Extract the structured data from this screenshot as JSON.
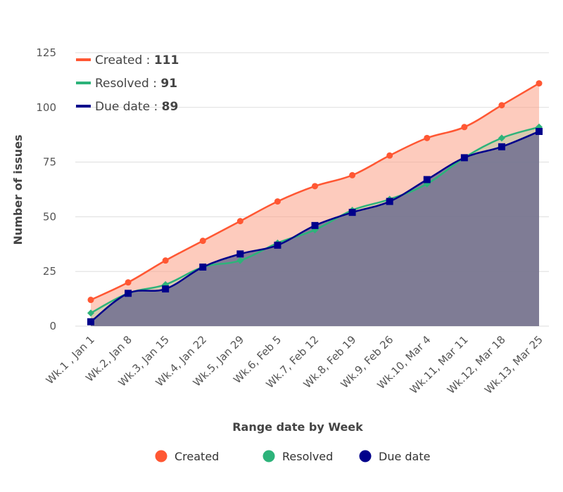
{
  "chart_data": {
    "type": "area",
    "xlabel": "Range date by Week",
    "ylabel": "Number of issues",
    "ylim": [
      0,
      125
    ],
    "yticks": [
      0,
      25,
      50,
      75,
      100,
      125
    ],
    "grid": true,
    "categories": [
      "Wk.1 , Jan 1",
      "Wk.2, Jan 8",
      "Wk.3, Jan 15",
      "Wk.4, Jan 22",
      "Wk.5, Jan 29",
      "Wk.6, Feb 5",
      "Wk.7, Feb 12",
      "Wk.8, Feb 19",
      "Wk.9, Feb 26",
      "Wk.10, Mar 4",
      "Wk.11, Mar 11",
      "Wk.12, Mar 18",
      "Wk.13, Mar 25"
    ],
    "series": [
      {
        "name": "Created",
        "color": "#ff5733",
        "marker": "circle",
        "values": [
          12,
          20,
          30,
          39,
          48,
          57,
          64,
          69,
          78,
          86,
          91,
          101,
          111
        ]
      },
      {
        "name": "Resolved",
        "color": "#2db37a",
        "marker": "diamond",
        "values": [
          6,
          15,
          19,
          27,
          30,
          38,
          44,
          53,
          58,
          65,
          77,
          86,
          91
        ]
      },
      {
        "name": "Due date",
        "color": "#00008b",
        "marker": "square",
        "values": [
          2,
          15,
          17,
          27,
          33,
          37,
          46,
          52,
          57,
          67,
          77,
          82,
          89
        ]
      }
    ],
    "inner_legend": [
      {
        "label": "Created",
        "sep": " : ",
        "value": "111"
      },
      {
        "label": "Resolved",
        "sep": " : ",
        "value": "91"
      },
      {
        "label": "Due date",
        "sep": " : ",
        "value": "89"
      }
    ],
    "legend_position": "bottom"
  }
}
